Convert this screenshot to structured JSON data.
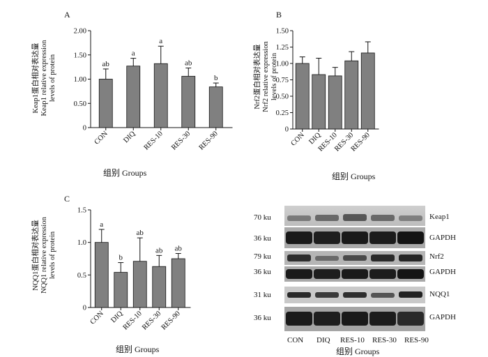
{
  "chart_data": [
    {
      "panel": "A",
      "type": "bar",
      "categories": [
        "CON",
        "DIQ",
        "RES-10",
        "RES-30",
        "RES-90"
      ],
      "values": [
        1.0,
        1.27,
        1.32,
        1.06,
        0.84
      ],
      "errors": [
        0.21,
        0.16,
        0.36,
        0.17,
        0.08
      ],
      "significance": [
        "ab",
        "a",
        "a",
        "ab",
        "b"
      ],
      "ylabel_lines": [
        "Keap1蛋白相对表达量",
        "Keap1 relative expression",
        "levels of protein"
      ],
      "xlabel": "组别 Groups",
      "ylim": [
        0,
        2.0
      ],
      "yticks": [
        "0",
        "0.50",
        "1.00",
        "1.50",
        "2.00"
      ],
      "bar_color": "#808080"
    },
    {
      "panel": "B",
      "type": "bar",
      "categories": [
        "CON",
        "DIQ",
        "RES-10",
        "RES-30",
        "RES-90"
      ],
      "values": [
        1.0,
        0.83,
        0.81,
        1.04,
        1.16
      ],
      "errors": [
        0.1,
        0.25,
        0.13,
        0.14,
        0.17
      ],
      "significance": [
        "",
        "",
        "",
        "",
        ""
      ],
      "ylabel_lines": [
        "Nrf2蛋白相对表达量",
        "Nrf2 relative expression",
        "levels of protein"
      ],
      "xlabel": "组别 Groups",
      "ylim": [
        0,
        1.5
      ],
      "yticks": [
        "0",
        "0.25",
        "0.50",
        "0.75",
        "1.00",
        "1.25",
        "1.50"
      ],
      "bar_color": "#808080"
    },
    {
      "panel": "C",
      "type": "bar",
      "categories": [
        "CON",
        "DIQ",
        "RES-10",
        "RES-30",
        "RES-90"
      ],
      "values": [
        1.0,
        0.54,
        0.71,
        0.63,
        0.75
      ],
      "errors": [
        0.2,
        0.15,
        0.36,
        0.17,
        0.08
      ],
      "significance": [
        "a",
        "b",
        "ab",
        "ab",
        "ab"
      ],
      "ylabel_lines": [
        "NQQ1蛋白相对表达量",
        "NQQ1 relative expression",
        "levels of protein"
      ],
      "xlabel": "组别 Groups",
      "ylim": [
        0,
        1.5
      ],
      "yticks": [
        "0",
        "0.5",
        "1.0",
        "1.5"
      ],
      "bar_color": "#808080"
    }
  ],
  "blot": {
    "rows": [
      {
        "ku": "70 ku",
        "protein": "Keap1"
      },
      {
        "ku": "36 ku",
        "protein": "GAPDH"
      },
      {
        "ku": "79 ku",
        "protein": "Nrf2"
      },
      {
        "ku": "36 ku",
        "protein": "GAPDH"
      },
      {
        "ku": "31 ku",
        "protein": "NQQ1"
      },
      {
        "ku": "36 ku",
        "protein": "GAPDH"
      }
    ],
    "lanes": [
      "CON",
      "DIQ",
      "RES-10",
      "RES-30",
      "RES-90"
    ],
    "xlabel": "组别 Groups"
  }
}
